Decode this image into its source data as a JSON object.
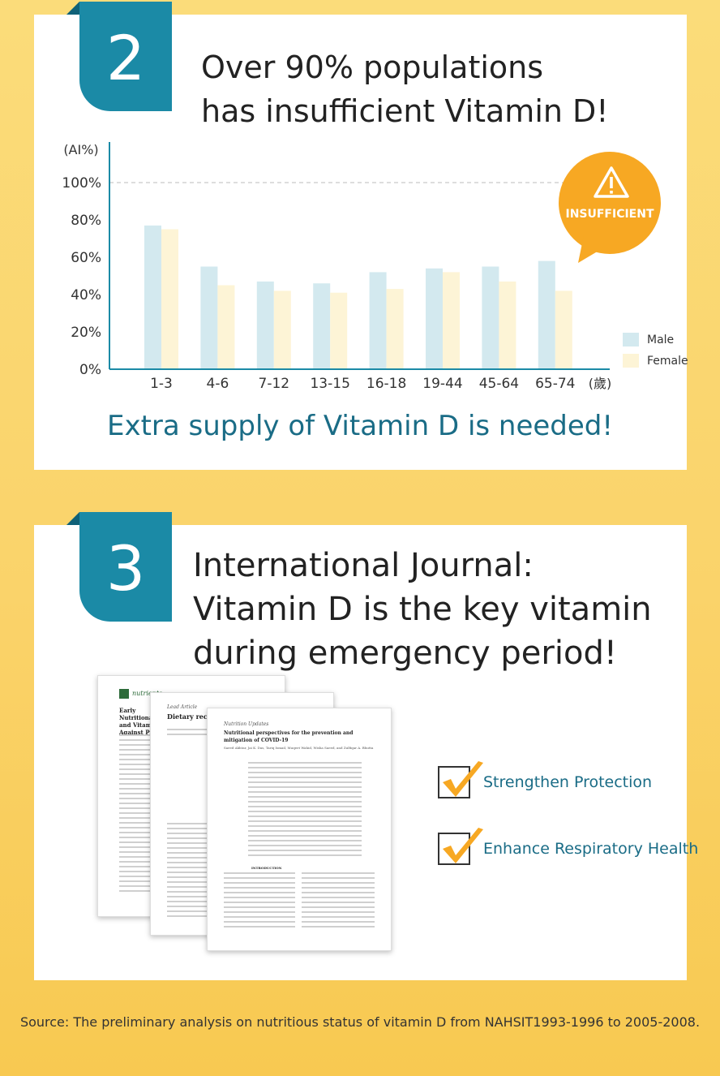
{
  "section1": {
    "number": "2",
    "heading_line1": "Over 90% populations",
    "heading_line2": "has insufficient Vitamin D!",
    "callout": "INSUFFICIENT",
    "cta": "Extra supply of Vitamin D is needed!"
  },
  "chart_data": {
    "type": "bar",
    "ylabel": "(AI%)",
    "xunit": "(歲)",
    "ylim": [
      0,
      100
    ],
    "yticks": [
      "0%",
      "20%",
      "40%",
      "60%",
      "80%",
      "100%"
    ],
    "categories": [
      "1-3",
      "4-6",
      "7-12",
      "13-15",
      "16-18",
      "19-44",
      "45-64",
      "65-74"
    ],
    "series": [
      {
        "name": "Male",
        "color": "#d3e9ef",
        "values": [
          77,
          55,
          47,
          46,
          52,
          54,
          55,
          58
        ]
      },
      {
        "name": "Female",
        "color": "#fdf4d6",
        "values": [
          75,
          45,
          42,
          41,
          43,
          52,
          47,
          42
        ]
      }
    ],
    "reference_line": 100
  },
  "section2": {
    "number": "3",
    "heading_line1": "International Journal:",
    "heading_line2": "Vitamin D is the key vitamin",
    "heading_line3": "during emergency period!",
    "checks": [
      "Strengthen Protection",
      "Enhance Respiratory Health"
    ],
    "doc1_title": "Early Nutritional and Vitamin Against Prog",
    "doc1_brand": "nutrients",
    "doc2_label": "Lead Article",
    "doc2_title": "Dietary recommen",
    "doc3_label": "Nutrition Updates",
    "doc3_title": "Nutritional perspectives for the prevention and mitigation of COVID-19",
    "doc3_authors": "Saeed Akhtar, Jai K. Das, Tariq Ismail, Muqeet Wahid, Wisha Saeed, and Zulfiqar A. Bhutta",
    "doc3_section": "INTRODUCTION"
  },
  "source": "Source: The preliminary analysis on nutritious status of vitamin D from NAHSIT1993-1996 to 2005-2008.",
  "colors": {
    "accent": "#1b8aa6",
    "cta": "#1a6c86",
    "callout": "#f7a823",
    "background": "#fad36a",
    "check": "#f7a823"
  }
}
